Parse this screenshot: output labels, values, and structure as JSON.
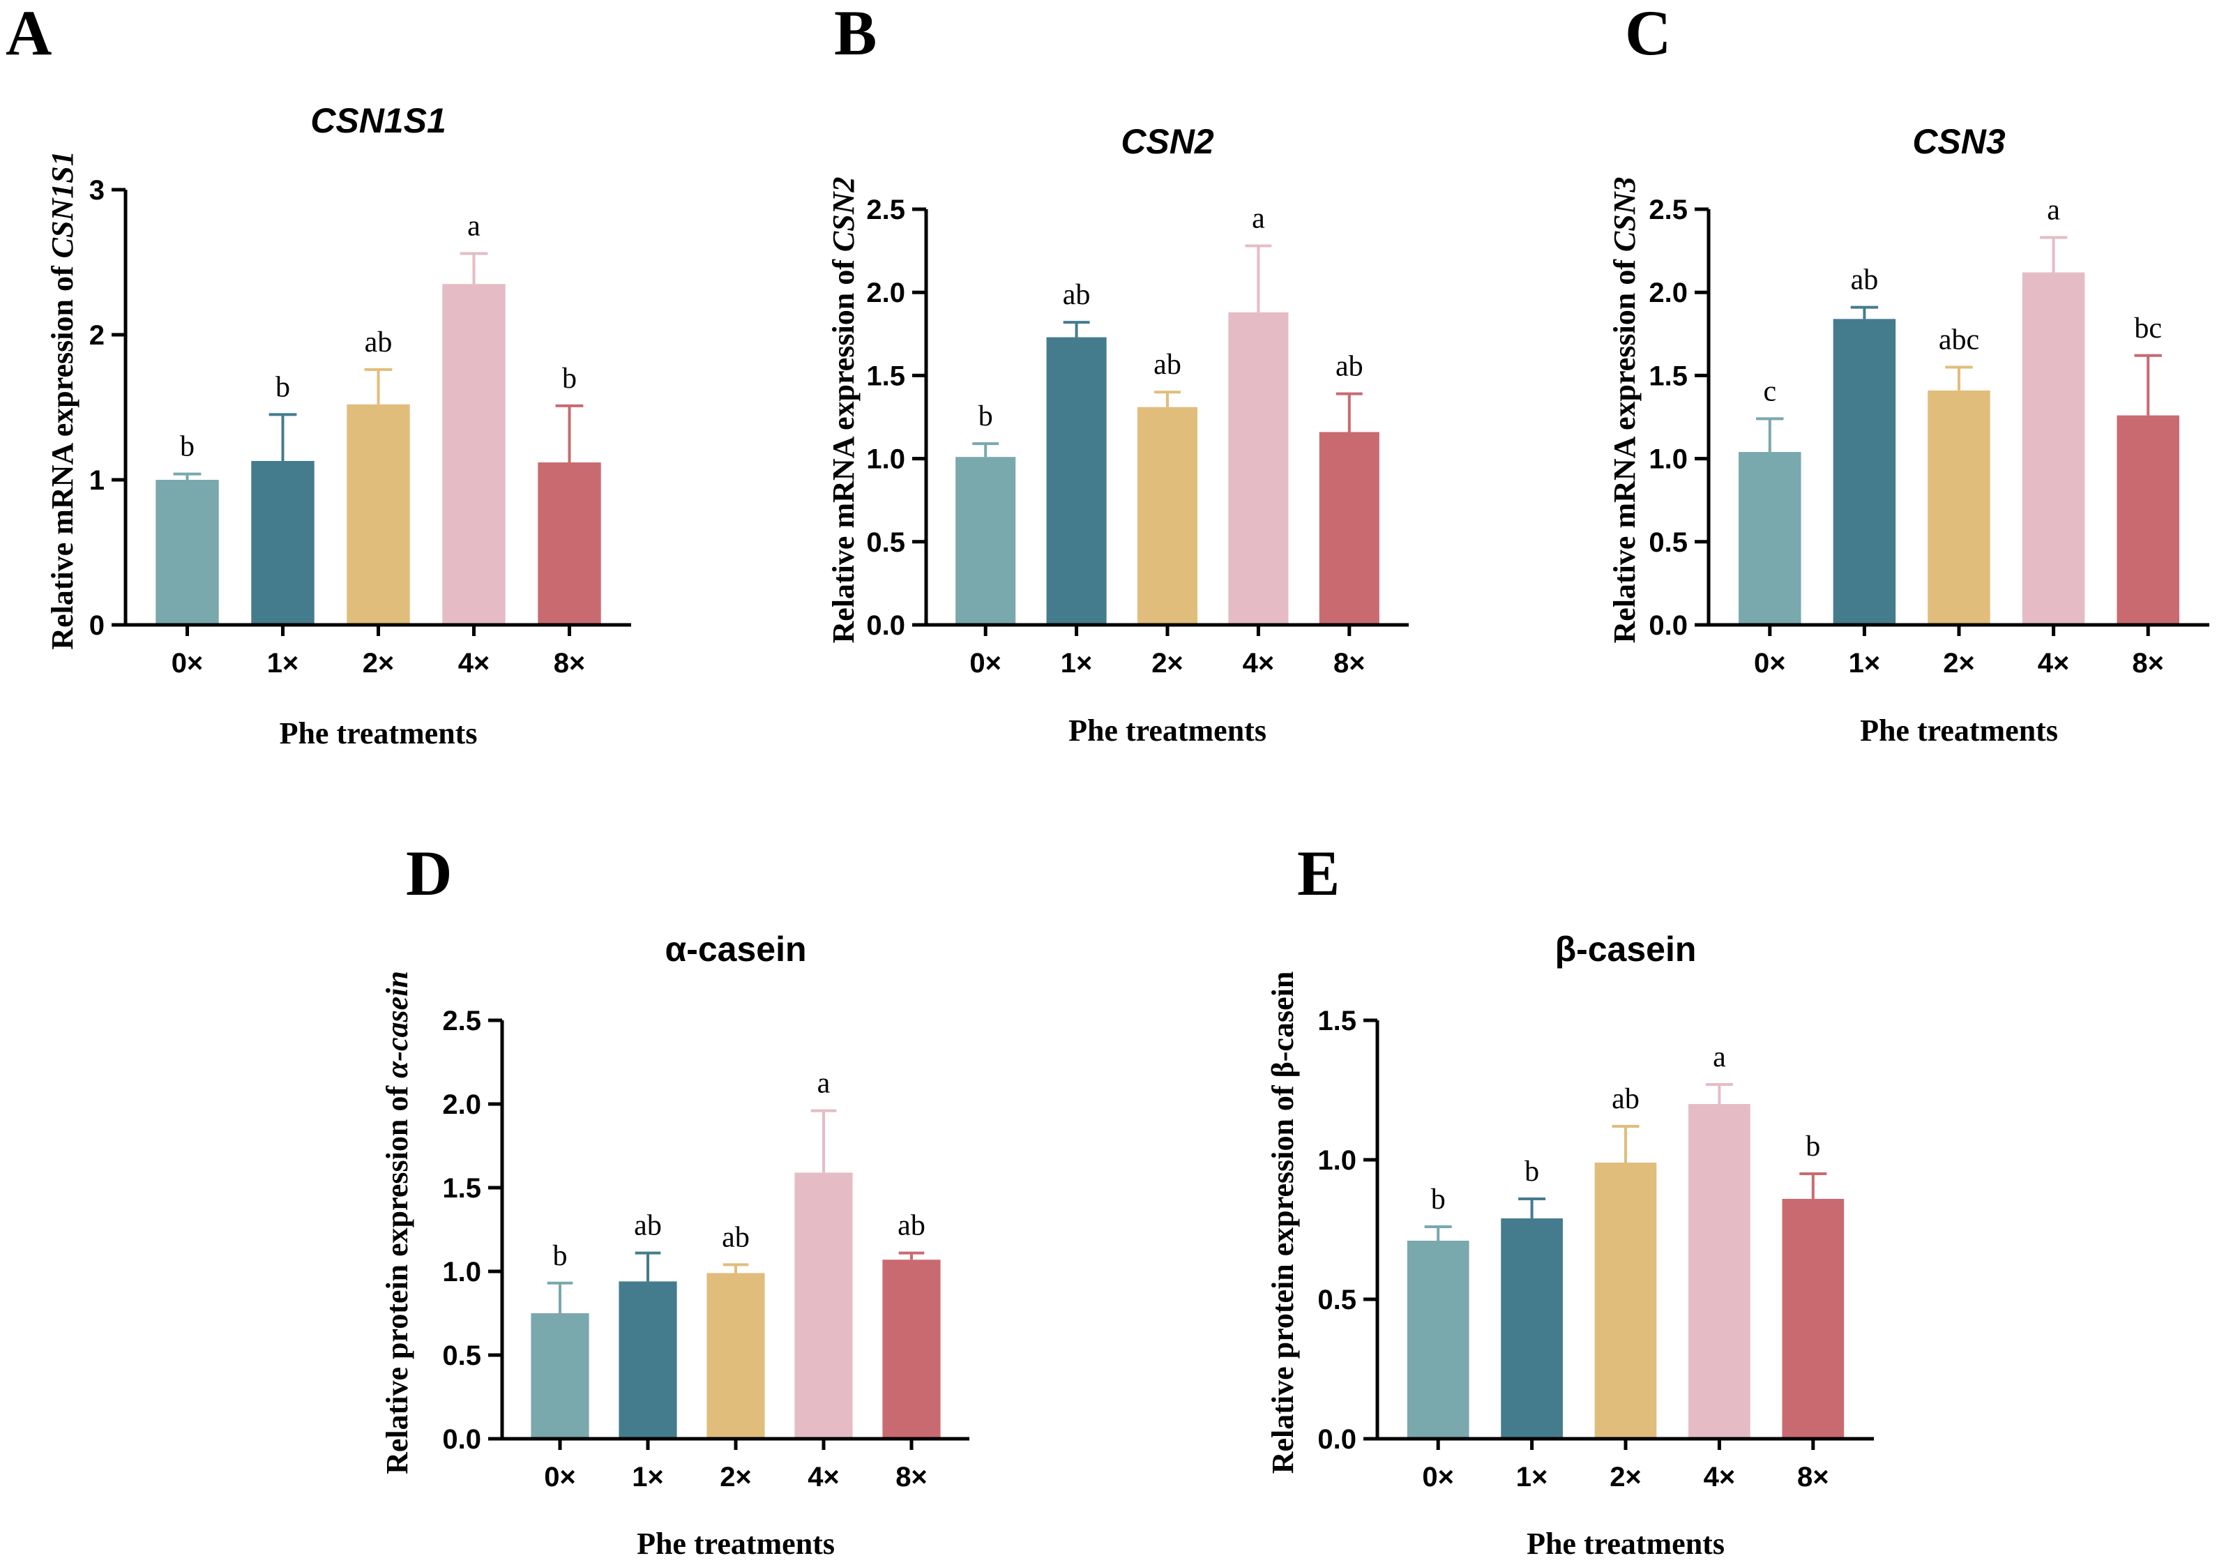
{
  "colors": [
    "#79a8ad",
    "#447c8d",
    "#e1bd7c",
    "#e5bcc5",
    "#c96a71"
  ],
  "chart_data": [
    {
      "panel": "A",
      "type": "bar",
      "title": "CSN1S1",
      "title_italic": true,
      "xlabel": "Phe treatments",
      "ylabel_prefix": "Relative mRNA expression of ",
      "ylabel_gene": "CSN1S1",
      "ylabel_gene_italic": true,
      "categories": [
        "0×",
        "1×",
        "2×",
        "4×",
        "8×"
      ],
      "values": [
        1.0,
        1.13,
        1.52,
        2.35,
        1.12
      ],
      "errors": [
        0.04,
        0.32,
        0.24,
        0.21,
        0.39
      ],
      "significance": [
        "b",
        "b",
        "ab",
        "a",
        "b"
      ],
      "ylim": [
        0,
        3
      ],
      "yticks": [
        "0",
        "1",
        "2",
        "3"
      ],
      "ytick_values": [
        0,
        1,
        2,
        3
      ]
    },
    {
      "panel": "B",
      "type": "bar",
      "title": "CSN2",
      "title_italic": true,
      "xlabel": "Phe treatments",
      "ylabel_prefix": "Relative mRNA expression of ",
      "ylabel_gene": "CSN2",
      "ylabel_gene_italic": true,
      "categories": [
        "0×",
        "1×",
        "2×",
        "4×",
        "8×"
      ],
      "values": [
        1.01,
        1.73,
        1.31,
        1.88,
        1.16
      ],
      "errors": [
        0.08,
        0.09,
        0.09,
        0.4,
        0.23
      ],
      "significance": [
        "b",
        "ab",
        "ab",
        "a",
        "ab"
      ],
      "ylim": [
        0,
        2.5
      ],
      "yticks": [
        "0.0",
        "0.5",
        "1.0",
        "1.5",
        "2.0",
        "2.5"
      ],
      "ytick_values": [
        0,
        0.5,
        1.0,
        1.5,
        2.0,
        2.5
      ]
    },
    {
      "panel": "C",
      "type": "bar",
      "title": "CSN3",
      "title_italic": true,
      "xlabel": "Phe treatments",
      "ylabel_prefix": "Relative mRNA expression of ",
      "ylabel_gene": "CSN3",
      "ylabel_gene_italic": true,
      "categories": [
        "0×",
        "1×",
        "2×",
        "4×",
        "8×"
      ],
      "values": [
        1.04,
        1.84,
        1.41,
        2.12,
        1.26
      ],
      "errors": [
        0.2,
        0.07,
        0.14,
        0.21,
        0.36
      ],
      "significance": [
        "c",
        "ab",
        "abc",
        "a",
        "bc"
      ],
      "ylim": [
        0,
        2.5
      ],
      "yticks": [
        "0.0",
        "0.5",
        "1.0",
        "1.5",
        "2.0",
        "2.5"
      ],
      "ytick_values": [
        0,
        0.5,
        1.0,
        1.5,
        2.0,
        2.5
      ]
    },
    {
      "panel": "D",
      "type": "bar",
      "title": "α-casein",
      "title_italic": false,
      "xlabel": "Phe treatments",
      "ylabel_prefix": "Relative protein expression of ",
      "ylabel_gene": "α-casein",
      "ylabel_gene_italic": true,
      "categories": [
        "0×",
        "1×",
        "2×",
        "4×",
        "8×"
      ],
      "values": [
        0.75,
        0.94,
        0.99,
        1.59,
        1.07
      ],
      "errors": [
        0.18,
        0.17,
        0.05,
        0.37,
        0.04
      ],
      "significance": [
        "b",
        "ab",
        "ab",
        "a",
        "ab"
      ],
      "ylim": [
        0,
        2.5
      ],
      "yticks": [
        "0.0",
        "0.5",
        "1.0",
        "1.5",
        "2.0",
        "2.5"
      ],
      "ytick_values": [
        0,
        0.5,
        1.0,
        1.5,
        2.0,
        2.5
      ]
    },
    {
      "panel": "E",
      "type": "bar",
      "title": "β-casein",
      "title_italic": false,
      "xlabel": "Phe treatments",
      "ylabel_prefix": "Relative protein expression of ",
      "ylabel_gene": "β-casein",
      "ylabel_gene_italic": false,
      "categories": [
        "0×",
        "1×",
        "2×",
        "4×",
        "8×"
      ],
      "values": [
        0.71,
        0.79,
        0.99,
        1.2,
        0.86
      ],
      "errors": [
        0.05,
        0.07,
        0.13,
        0.07,
        0.09
      ],
      "significance": [
        "b",
        "b",
        "ab",
        "a",
        "b"
      ],
      "ylim": [
        0,
        1.5
      ],
      "yticks": [
        "0.0",
        "0.5",
        "1.0",
        "1.5"
      ],
      "ytick_values": [
        0,
        0.5,
        1.0,
        1.5
      ]
    }
  ]
}
